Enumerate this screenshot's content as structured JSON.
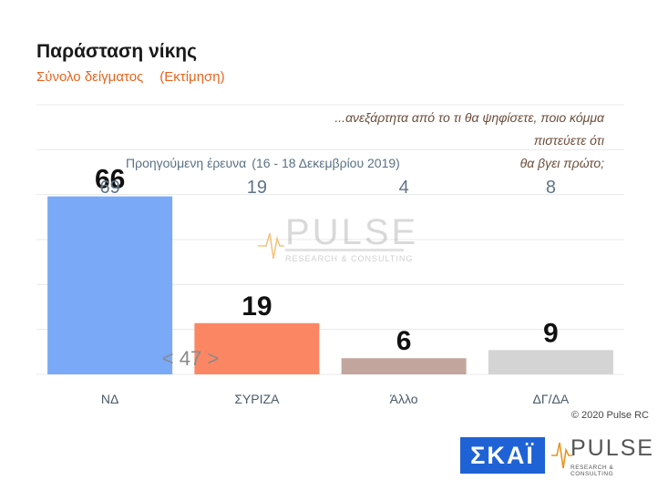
{
  "title": "Παράσταση νίκης",
  "subtitle": "Σύνολο δείγματος",
  "subtitle_note": "(Εκτίμηση)",
  "question_line1": "...ανεξάρτητα από το τι θα ψηφίσετε, ποιο κόμμα πιστεύετε ότι",
  "question_line2": "θα βγει πρώτο;",
  "previous_label": "Προηγούμενη έρευνα",
  "previous_dates": "(16 - 18 Δεκεμβρίου 2019)",
  "copyright": "© 2020 Pulse RC",
  "colors": {
    "nd": "#7aa9f7",
    "syriza": "#fb8664",
    "other": "#c2a69e",
    "dgda": "#d4d4d4"
  },
  "logos": {
    "skai": "ΣΚΑΪ",
    "pulse": "PULSE",
    "pulse_tagline": "RESEARCH & CONSULTING",
    "watermark": "PULSE",
    "watermark_tagline": "RESEARCH & CONSULTING"
  },
  "chart_data": {
    "type": "bar",
    "categories": [
      "ΝΔ",
      "ΣΥΡΙΖΑ",
      "Άλλο",
      "ΔΓ/ΔΑ"
    ],
    "values": [
      66,
      19,
      6,
      9
    ],
    "previous_values": [
      69,
      19,
      4,
      8
    ],
    "gap_annotation": "< 47 >",
    "ylim": [
      0,
      100
    ],
    "grid": true
  }
}
